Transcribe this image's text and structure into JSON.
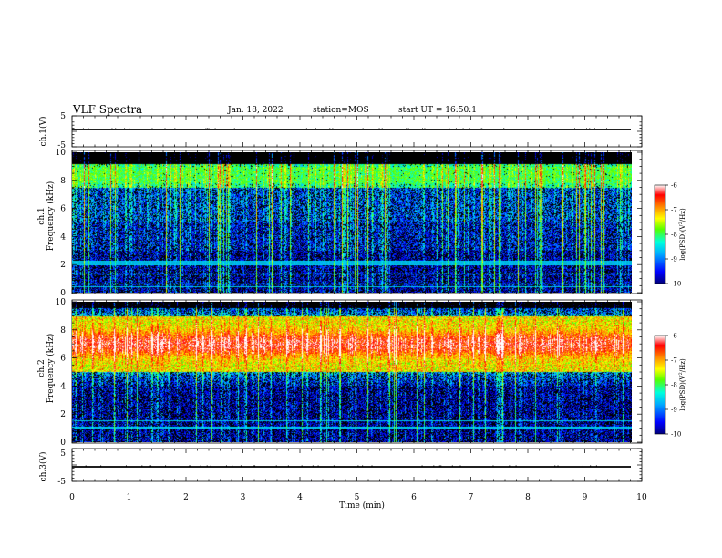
{
  "header": {
    "title": "VLF Spectra",
    "date": "Jan. 18, 2022",
    "station": "station=MOS",
    "start": "start UT = 16:50:1"
  },
  "chart_data": [
    {
      "type": "line",
      "name": "ch1-voltage",
      "ylabel": "ch.1(V)",
      "ylim": [
        -5,
        5
      ],
      "yticks": [
        "5",
        "-5"
      ],
      "xlim": [
        0,
        10
      ],
      "series": [
        {
          "values_note": "flat trace",
          "x": [
            0,
            10
          ],
          "y": [
            0,
            0
          ]
        }
      ]
    },
    {
      "type": "heatmap",
      "name": "ch1-spectrogram",
      "ylabel": "ch.1\nFrequency (kHz)",
      "ylim": [
        0,
        10
      ],
      "yticks": [
        "0",
        "2",
        "4",
        "6",
        "8",
        "10"
      ],
      "xlim": [
        0,
        9.8
      ],
      "colorbar": {
        "label": "log(PSD)(V²/Hz)",
        "range": [
          -10,
          -6
        ],
        "ticks": [
          "-6",
          "-7",
          "-8",
          "-9",
          "-10"
        ]
      },
      "dominant_band_khz": [
        7.5,
        9
      ],
      "intensity_profile": "broadband impulsive bursts, strongest 7.5–9 kHz; horizontal lines near 0.4, 0.6, 1.3, 2.0, 2.2 kHz"
    },
    {
      "type": "heatmap",
      "name": "ch2-spectrogram",
      "ylabel": "ch.2\nFrequency (kHz)",
      "ylim": [
        0,
        10
      ],
      "yticks": [
        "0",
        "2",
        "4",
        "6",
        "8",
        "10"
      ],
      "xlim": [
        0,
        9.8
      ],
      "colorbar": {
        "label": "log(PSD)(V²/Hz)",
        "range": [
          -10,
          -6
        ],
        "ticks": [
          "-6",
          "-7",
          "-8",
          "-9",
          "-10"
        ]
      },
      "dominant_band_khz": [
        5.5,
        8.5
      ],
      "intensity_profile": "strong continuous band 5.5–8.5 kHz peaking near 7 kHz; horizontal lines near 1.0, 1.5 kHz"
    },
    {
      "type": "line",
      "name": "ch3-voltage",
      "ylabel": "ch.3(V)",
      "ylim": [
        -5,
        5
      ],
      "yticks": [
        "5",
        "-5"
      ],
      "xlim": [
        0,
        10
      ],
      "series": [
        {
          "x": [
            0,
            10
          ],
          "y": [
            0,
            0
          ]
        }
      ]
    }
  ],
  "xaxis": {
    "label": "Time (min)",
    "ticks": [
      "0",
      "1",
      "2",
      "3",
      "4",
      "5",
      "6",
      "7",
      "8",
      "9",
      "10"
    ]
  },
  "colors": {
    "background": "#000000",
    "colormap": [
      "#00007a",
      "#0000ff",
      "#00aaff",
      "#00ffdd",
      "#55ff00",
      "#ffff00",
      "#ff8800",
      "#ff0000",
      "#ffffff"
    ]
  }
}
